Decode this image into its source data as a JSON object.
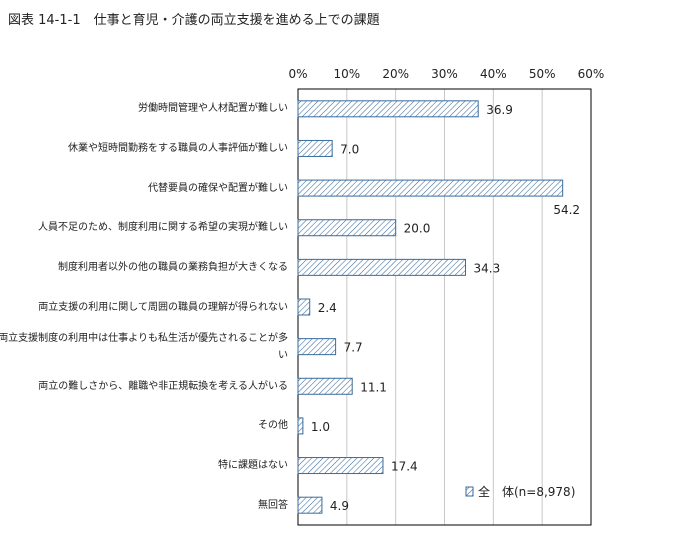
{
  "title": "図表 14-1-1　仕事と育児・介護の両立支援を進める上での課題",
  "chart_data": {
    "type": "bar",
    "orientation": "horizontal",
    "categories": [
      "労働時間管理や人材配置が難しい",
      "休業や短時間勤務をする職員の人事評価が難しい",
      "代替要員の確保や配置が難しい",
      "人員不足のため、制度利用に関する希望の実現が難しい",
      "制度利用者以外の他の職員の業務負担が大きくなる",
      "両立支援の利用に関して周囲の職員の理解が得られない",
      "両立支援制度の利用中は仕事よりも私生活が優先されることが多い",
      "両立の難しさから、離職や非正規転換を考える人がいる",
      "その他",
      "特に課題はない",
      "無回答"
    ],
    "series": [
      {
        "name": "全　体(n=8,978)",
        "values": [
          36.9,
          7.0,
          54.2,
          20.0,
          34.3,
          2.4,
          7.7,
          11.1,
          1.0,
          17.4,
          4.9
        ]
      }
    ],
    "value_labels": [
      "36.9",
      "7.0",
      "54.2",
      "20.0",
      "34.3",
      "2.4",
      "7.7",
      "11.1",
      "1.0",
      "17.4",
      "4.9"
    ],
    "xlim": [
      0,
      60
    ],
    "x_ticks": [
      "0%",
      "10%",
      "20%",
      "30%",
      "40%",
      "50%",
      "60%"
    ],
    "grid": "vertical lines",
    "legend": "bottom-right",
    "bar_fill": "diagonal hatch",
    "bar_stroke": "#3a6b9c",
    "grid_color": "#c8c8c8"
  }
}
